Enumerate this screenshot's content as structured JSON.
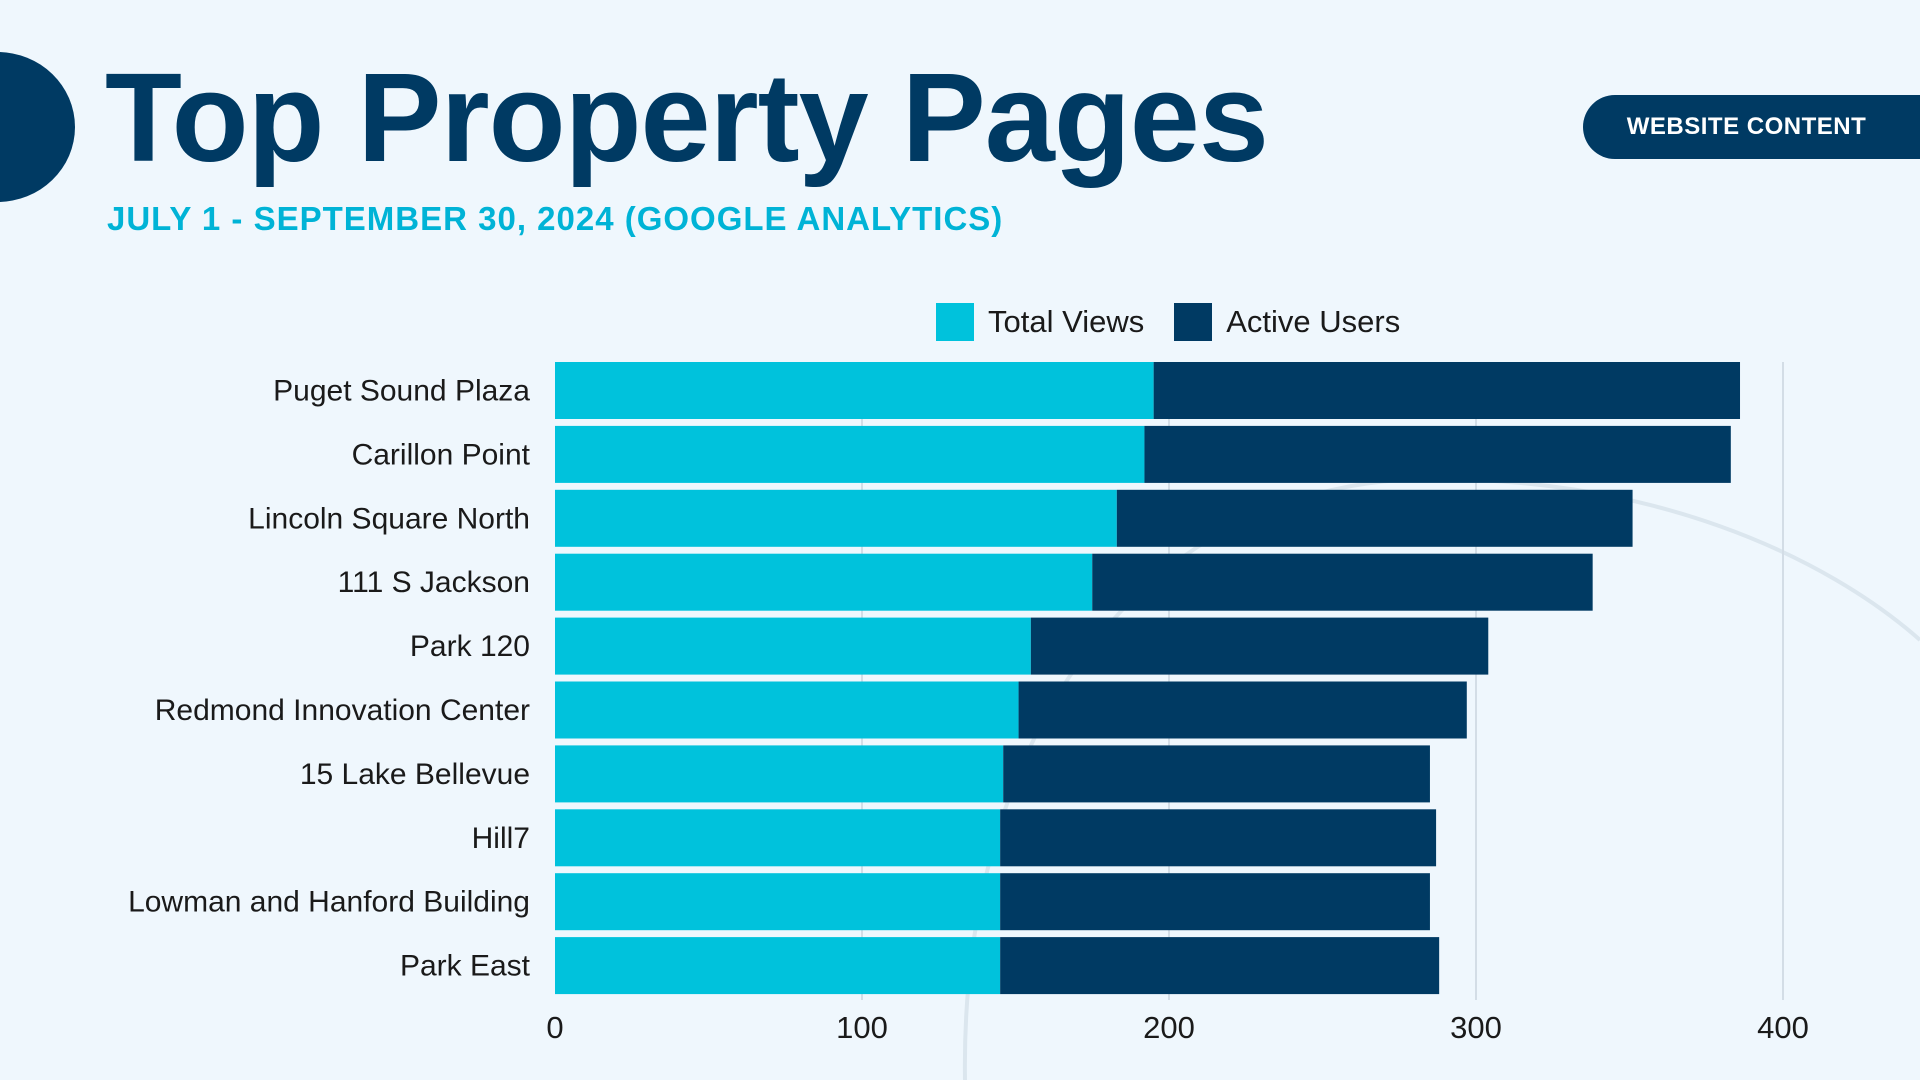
{
  "header": {
    "title": "Top Property Pages",
    "subtitle": "JULY 1 - SEPTEMBER 30, 2024 (GOOGLE ANALYTICS)",
    "badge": "WEBSITE CONTENT"
  },
  "colors": {
    "total_views": "#00c2dc",
    "active_users": "#003a63",
    "grid": "#d3dde6",
    "decor_arc": "#dbe6ee"
  },
  "chart_data": {
    "type": "bar",
    "orientation": "horizontal",
    "stacked": true,
    "categories": [
      "Puget Sound Plaza",
      "Carillon Point",
      "Lincoln Square North",
      "111 S Jackson",
      "Park 120",
      "Redmond Innovation Center",
      "15 Lake Bellevue",
      "Hill7",
      "Lowman and Hanford Building",
      "Park East"
    ],
    "series": [
      {
        "name": "Total Views",
        "values": [
          195,
          192,
          183,
          175,
          155,
          151,
          146,
          145,
          145,
          145
        ]
      },
      {
        "name": "Active Users",
        "values": [
          191,
          191,
          168,
          163,
          149,
          146,
          139,
          142,
          140,
          143
        ]
      }
    ],
    "xlim": [
      0,
      400
    ],
    "xticks": [
      0,
      100,
      200,
      300,
      400
    ],
    "grid": true,
    "legend": "top"
  }
}
